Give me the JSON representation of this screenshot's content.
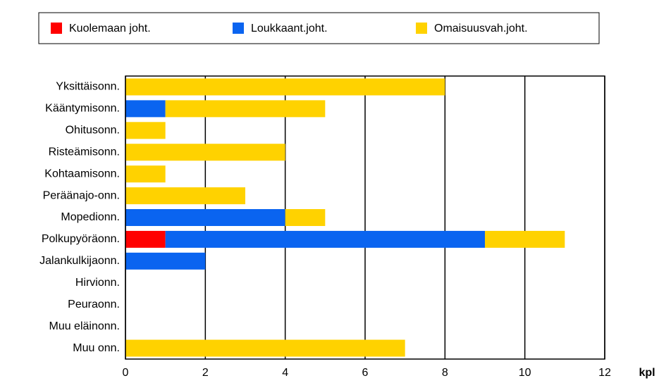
{
  "chart_data": {
    "type": "stacked-bar-horizontal",
    "x_label": "kpl",
    "categories": [
      "Yksittäisonn.",
      "Kääntymisonn.",
      "Ohitusonn.",
      "Risteämisonn.",
      "Kohtaamisonn.",
      "Peräänajo-onn.",
      "Mopedionn.",
      "Polkupyöräonn.",
      "Jalankulkijaonn.",
      "Hirvionn.",
      "Peuraonn.",
      "Muu eläinonn.",
      "Muu onn."
    ],
    "series": [
      {
        "name": "Kuolemaan joht.",
        "color": "#ff0000",
        "values": [
          0,
          0,
          0,
          0,
          0,
          0,
          0,
          1,
          0,
          0,
          0,
          0,
          0
        ]
      },
      {
        "name": "Loukkaant.joht.",
        "color": "#0a64f0",
        "values": [
          0,
          1,
          0,
          0,
          0,
          0,
          4,
          8,
          2,
          0,
          0,
          0,
          0
        ]
      },
      {
        "name": "Omaisuusvah.joht.",
        "color": "#ffd200",
        "values": [
          8,
          4,
          1,
          4,
          1,
          3,
          1,
          2,
          0,
          0,
          0,
          0,
          7
        ]
      }
    ],
    "xlim": [
      0,
      12
    ],
    "xticks": [
      0,
      2,
      4,
      6,
      8,
      10,
      12
    ],
    "grid": true,
    "legend": "top"
  }
}
